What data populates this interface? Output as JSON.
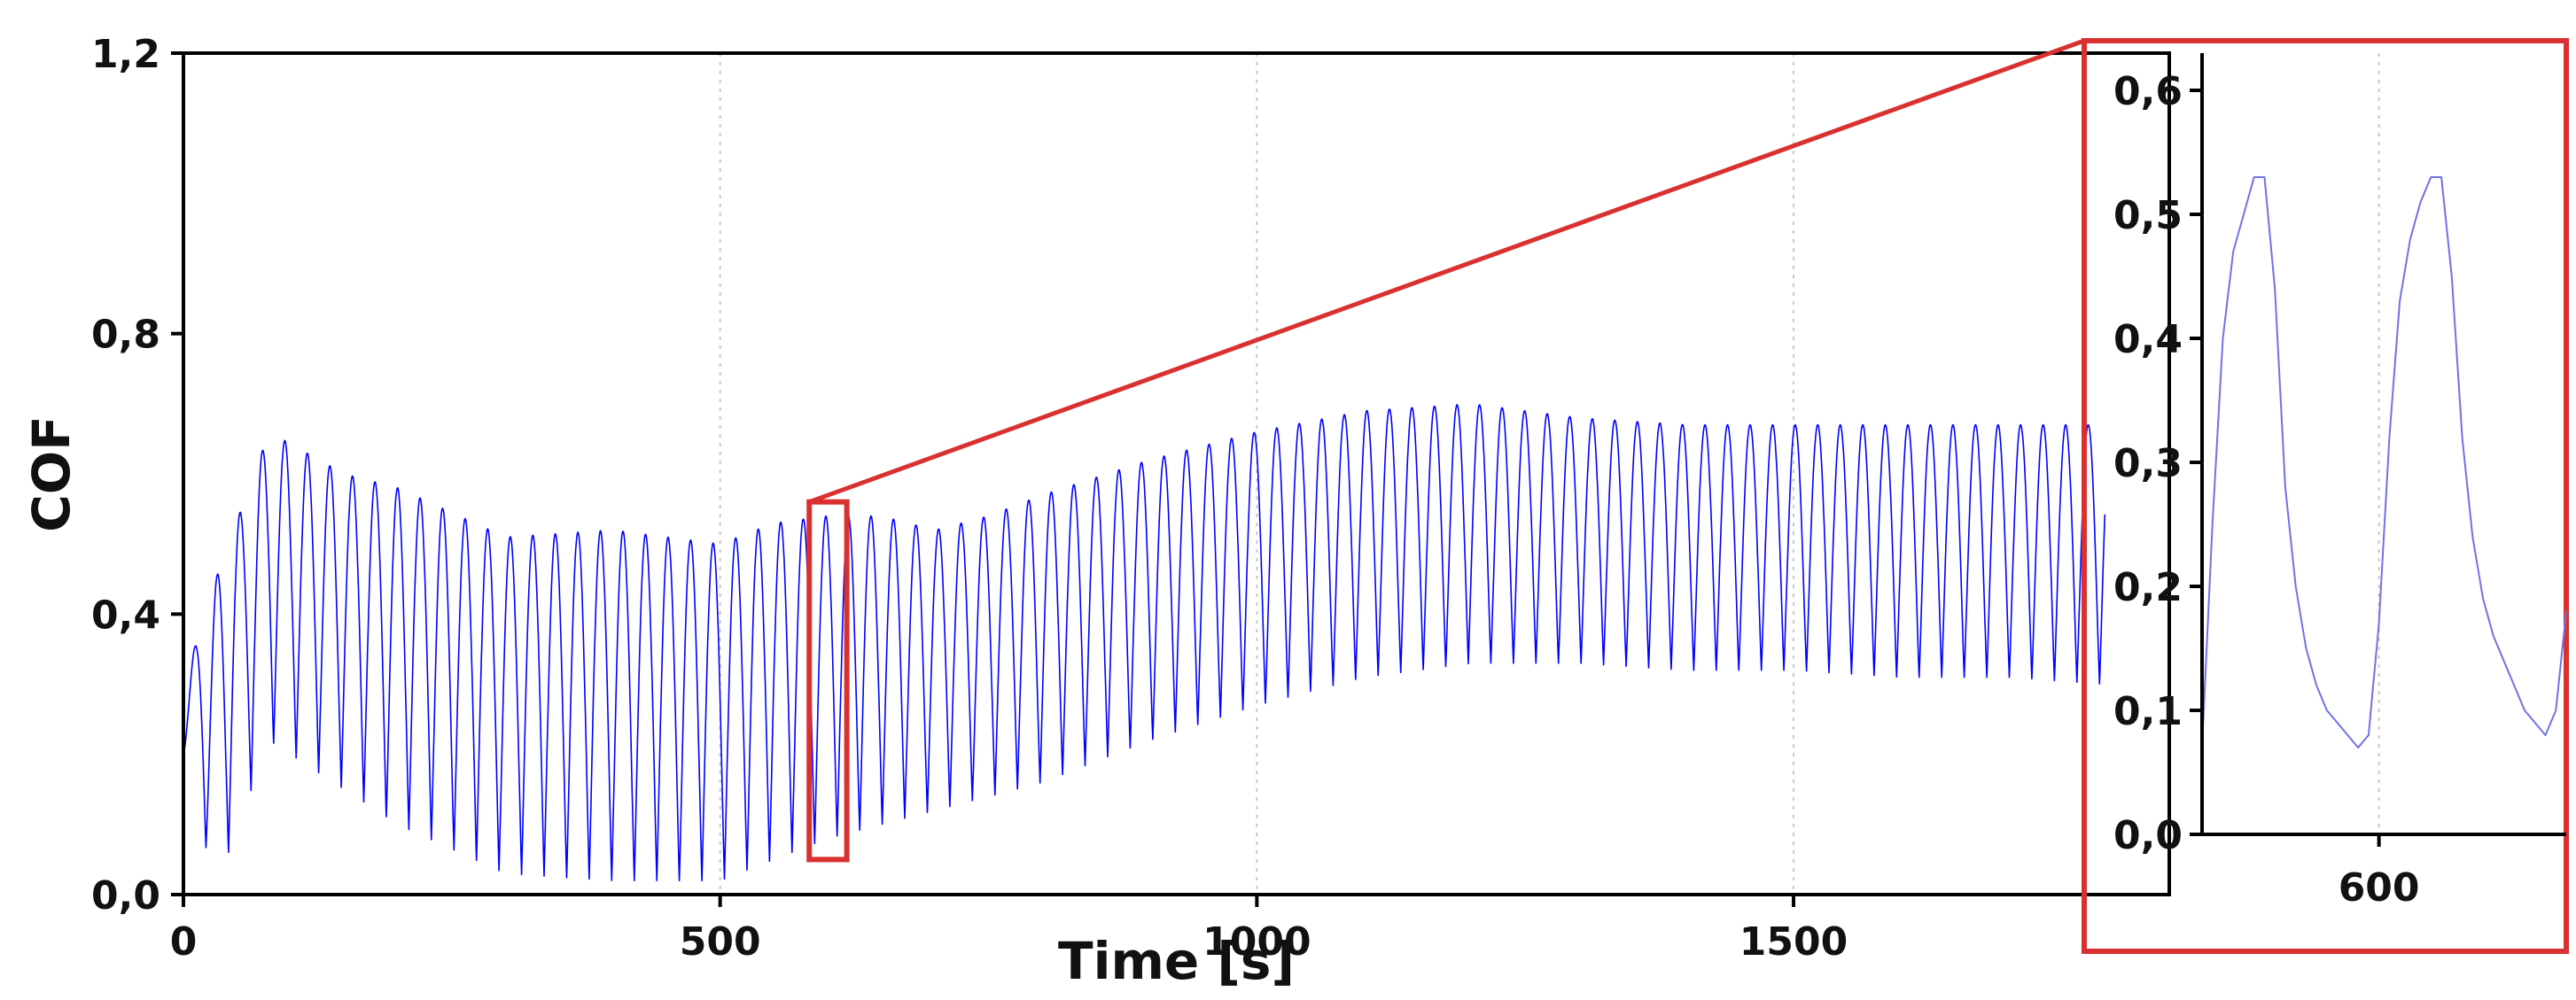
{
  "colors": {
    "series": "#0000ff",
    "highlight": "#d9312f",
    "axis": "#000000",
    "grid": "#c8c8c8"
  },
  "chart_data": [
    {
      "id": "main",
      "type": "line",
      "title": "",
      "xlabel": "Time [s]",
      "ylabel": "COF",
      "xlim": [
        0,
        1850
      ],
      "ylim": [
        0.0,
        1.2
      ],
      "xticks": [
        0,
        500,
        1000,
        1500
      ],
      "xtick_labels": [
        "0",
        "500",
        "1000",
        "1500"
      ],
      "yticks": [
        0.0,
        0.4,
        0.8,
        1.2
      ],
      "ytick_labels": [
        "0,0",
        "0,4",
        "0,8",
        "1,2"
      ],
      "grid": "vertical dotted",
      "series": [
        {
          "name": "COF",
          "signal": "oscillating",
          "x_range": [
            0,
            1790
          ],
          "cycle_period_s": 21,
          "time": [
            0,
            30,
            80,
            150,
            200,
            300,
            400,
            500,
            550,
            600,
            650,
            700,
            750,
            800,
            900,
            1000,
            1100,
            1200,
            1300,
            1400,
            1500,
            1600,
            1700,
            1790
          ],
          "upper_envelope": [
            0.3,
            0.45,
            0.66,
            0.6,
            0.58,
            0.51,
            0.52,
            0.5,
            0.53,
            0.54,
            0.54,
            0.52,
            0.54,
            0.57,
            0.62,
            0.66,
            0.69,
            0.7,
            0.68,
            0.67,
            0.67,
            0.67,
            0.67,
            0.67
          ],
          "lower_envelope": [
            0.2,
            0.01,
            0.22,
            0.15,
            0.1,
            0.03,
            0.02,
            0.02,
            0.05,
            0.08,
            0.1,
            0.12,
            0.14,
            0.16,
            0.22,
            0.27,
            0.31,
            0.33,
            0.33,
            0.32,
            0.32,
            0.31,
            0.31,
            0.3
          ]
        }
      ],
      "highlight_box": {
        "x_range": [
          583,
          618
        ],
        "y_range": [
          0.05,
          0.56
        ]
      }
    },
    {
      "id": "inset",
      "type": "line",
      "title": "",
      "xlabel": "",
      "ylabel": "",
      "xlim": [
        583,
        618
      ],
      "ylim": [
        0.0,
        0.63
      ],
      "xticks": [
        600
      ],
      "xtick_labels": [
        "600"
      ],
      "yticks": [
        0.0,
        0.1,
        0.2,
        0.3,
        0.4,
        0.5,
        0.6
      ],
      "ytick_labels": [
        "0,0",
        "0,1",
        "0,2",
        "0,3",
        "0,4",
        "0,5",
        "0,6"
      ],
      "grid": "vertical dotted",
      "series": [
        {
          "name": "COF (zoom)",
          "x": [
            583,
            584,
            585,
            586,
            587,
            588,
            589,
            590,
            591,
            592,
            593,
            594,
            595,
            596,
            597,
            598,
            599,
            600,
            601,
            602,
            603,
            604,
            605,
            606,
            607,
            608,
            609,
            610,
            611,
            612,
            613,
            614,
            615,
            616,
            617,
            618
          ],
          "y": [
            0.07,
            0.25,
            0.4,
            0.47,
            0.5,
            0.53,
            0.53,
            0.44,
            0.28,
            0.2,
            0.15,
            0.12,
            0.1,
            0.09,
            0.08,
            0.07,
            0.08,
            0.17,
            0.32,
            0.43,
            0.48,
            0.51,
            0.53,
            0.53,
            0.45,
            0.32,
            0.24,
            0.19,
            0.16,
            0.14,
            0.12,
            0.1,
            0.09,
            0.08,
            0.1,
            0.18
          ]
        }
      ]
    }
  ]
}
